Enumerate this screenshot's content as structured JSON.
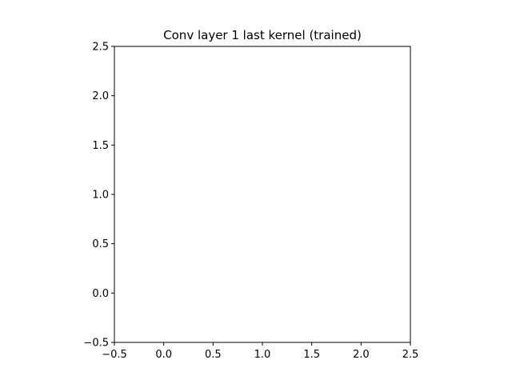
{
  "chart_data": {
    "type": "heatmap",
    "title": "Conv layer 1 last kernel (trained)",
    "xlabel": "",
    "ylabel": "",
    "xlim": [
      -0.5,
      2.5
    ],
    "ylim": [
      2.5,
      -0.5
    ],
    "x_ticks": [
      "−0.5",
      "0.0",
      "0.5",
      "1.0",
      "1.5",
      "2.0",
      "2.5"
    ],
    "y_ticks": [
      "−0.5",
      "0.0",
      "0.5",
      "1.0",
      "1.5",
      "2.0",
      "2.5"
    ],
    "x_tick_values": [
      -0.5,
      0.0,
      0.5,
      1.0,
      1.5,
      2.0,
      2.5
    ],
    "y_tick_values": [
      -0.5,
      0.0,
      0.5,
      1.0,
      1.5,
      2.0,
      2.5
    ],
    "grid": false,
    "cells": [
      [
        "#858368",
        "#8a8467",
        "#877c6b"
      ],
      [
        "#7b7f7a",
        "#82777a",
        "#847a6a"
      ],
      [
        "#7b7e77",
        "#74806b",
        "#757c7a"
      ]
    ]
  }
}
